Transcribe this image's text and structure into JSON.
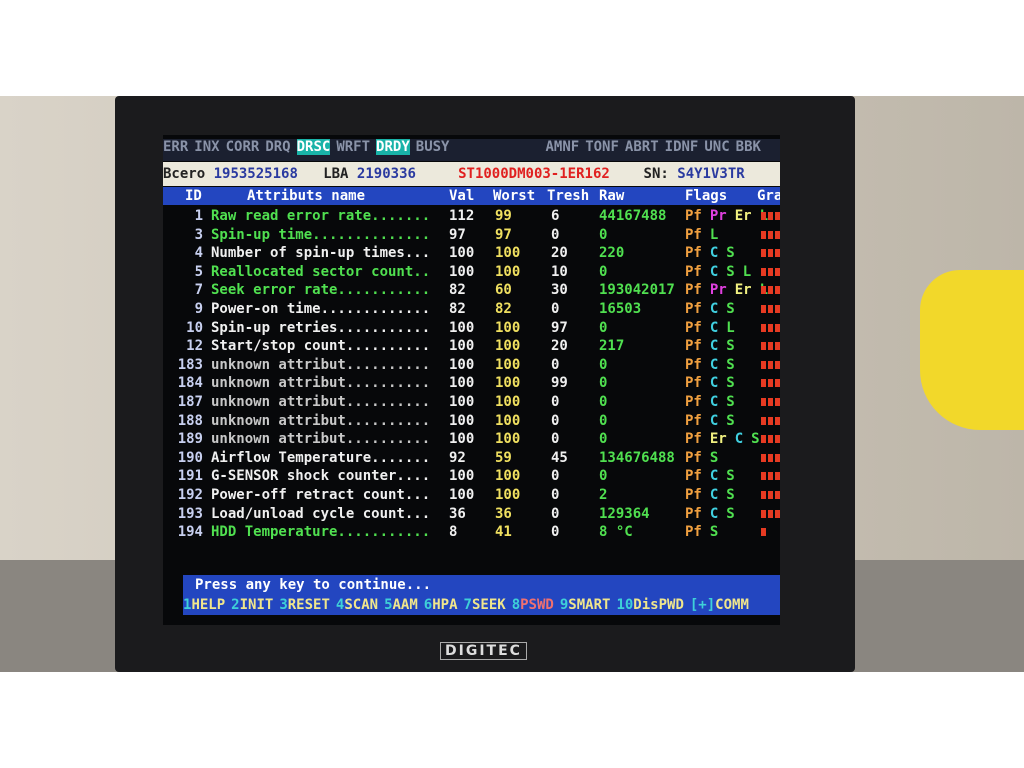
{
  "status_flags": [
    {
      "t": "ERR",
      "on": false
    },
    {
      "t": "INX",
      "on": false
    },
    {
      "t": "CORR",
      "on": false
    },
    {
      "t": "DRQ",
      "on": false
    },
    {
      "t": "DRSC",
      "on": true
    },
    {
      "t": "WRFT",
      "on": false
    },
    {
      "t": "DRDY",
      "on": true
    },
    {
      "t": "BUSY",
      "on": false
    }
  ],
  "error_flags": [
    "AMNF",
    "TONF",
    "ABRT",
    "IDNF",
    "UNC",
    "BBK"
  ],
  "info": {
    "size_label": "Bcero",
    "size": "1953525168",
    "lba_label": "LBA",
    "lba": "2190336",
    "model": "ST1000DM003-1ER162",
    "sn_label": "SN:",
    "sn": "S4Y1V3TR"
  },
  "headers": {
    "id": "ID",
    "name": "Attributs name",
    "val": "Val",
    "worst": "Worst",
    "tresh": "Tresh",
    "raw": "Raw",
    "flags": "Flags",
    "graph": "Gra"
  },
  "flag_colors": {
    "Pf": "#f0a040",
    "Pr": "#e040e0",
    "Er": "#f0f080",
    "L": "#50e050",
    "C": "#40d0e0",
    "S": "#50e050"
  },
  "rows": [
    {
      "id": "1",
      "name": "Raw read error rate.......",
      "val": "112",
      "worst": "99",
      "tresh": "6",
      "raw": "44167488",
      "flags": [
        "Pf",
        "Pr",
        "Er",
        "L"
      ],
      "color": "#50e050",
      "bars": 4
    },
    {
      "id": "3",
      "name": "Spin-up time..............",
      "val": "97",
      "worst": "97",
      "tresh": "0",
      "raw": "0",
      "flags": [
        "Pf",
        "L"
      ],
      "color": "#50e050",
      "bars": 4
    },
    {
      "id": "4",
      "name": "Number of spin-up times...",
      "val": "100",
      "worst": "100",
      "tresh": "20",
      "raw": "220",
      "flags": [
        "Pf",
        "C",
        "S"
      ],
      "color": "#f0f0f0",
      "bars": 4
    },
    {
      "id": "5",
      "name": "Reallocated sector count..",
      "val": "100",
      "worst": "100",
      "tresh": "10",
      "raw": "0",
      "flags": [
        "Pf",
        "C",
        "S",
        "L"
      ],
      "color": "#50e050",
      "bars": 4
    },
    {
      "id": "7",
      "name": "Seek error rate...........",
      "val": "82",
      "worst": "60",
      "tresh": "30",
      "raw": "193042017",
      "flags": [
        "Pf",
        "Pr",
        "Er",
        "L"
      ],
      "color": "#50e050",
      "bars": 4
    },
    {
      "id": "9",
      "name": "Power-on time.............",
      "val": "82",
      "worst": "82",
      "tresh": "0",
      "raw": "16503",
      "flags": [
        "Pf",
        "C",
        "S"
      ],
      "color": "#f0f0f0",
      "bars": 4
    },
    {
      "id": "10",
      "name": "Spin-up retries...........",
      "val": "100",
      "worst": "100",
      "tresh": "97",
      "raw": "0",
      "flags": [
        "Pf",
        "C",
        "L"
      ],
      "color": "#f0f0f0",
      "bars": 4
    },
    {
      "id": "12",
      "name": "Start/stop count..........",
      "val": "100",
      "worst": "100",
      "tresh": "20",
      "raw": "217",
      "flags": [
        "Pf",
        "C",
        "S"
      ],
      "color": "#f0f0f0",
      "bars": 4
    },
    {
      "id": "183",
      "name": "unknown attribut..........",
      "val": "100",
      "worst": "100",
      "tresh": "0",
      "raw": "0",
      "flags": [
        "Pf",
        "C",
        "S"
      ],
      "color": "#c8c8c8",
      "bars": 4
    },
    {
      "id": "184",
      "name": "unknown attribut..........",
      "val": "100",
      "worst": "100",
      "tresh": "99",
      "raw": "0",
      "flags": [
        "Pf",
        "C",
        "S"
      ],
      "color": "#c8c8c8",
      "bars": 4
    },
    {
      "id": "187",
      "name": "unknown attribut..........",
      "val": "100",
      "worst": "100",
      "tresh": "0",
      "raw": "0",
      "flags": [
        "Pf",
        "C",
        "S"
      ],
      "color": "#c8c8c8",
      "bars": 4
    },
    {
      "id": "188",
      "name": "unknown attribut..........",
      "val": "100",
      "worst": "100",
      "tresh": "0",
      "raw": "0",
      "flags": [
        "Pf",
        "C",
        "S"
      ],
      "color": "#c8c8c8",
      "bars": 4
    },
    {
      "id": "189",
      "name": "unknown attribut..........",
      "val": "100",
      "worst": "100",
      "tresh": "0",
      "raw": "0",
      "flags": [
        "Pf",
        "Er",
        "C",
        "S"
      ],
      "color": "#c8c8c8",
      "bars": 4
    },
    {
      "id": "190",
      "name": "Airflow Temperature.......",
      "val": "92",
      "worst": "59",
      "tresh": "45",
      "raw": "134676488",
      "flags": [
        "Pf",
        "S"
      ],
      "color": "#f0f0f0",
      "bars": 4
    },
    {
      "id": "191",
      "name": "G-SENSOR shock counter....",
      "val": "100",
      "worst": "100",
      "tresh": "0",
      "raw": "0",
      "flags": [
        "Pf",
        "C",
        "S"
      ],
      "color": "#f0f0f0",
      "bars": 4
    },
    {
      "id": "192",
      "name": "Power-off retract count...",
      "val": "100",
      "worst": "100",
      "tresh": "0",
      "raw": "2",
      "flags": [
        "Pf",
        "C",
        "S"
      ],
      "color": "#f0f0f0",
      "bars": 4
    },
    {
      "id": "193",
      "name": "Load/unload cycle count...",
      "val": "36",
      "worst": "36",
      "tresh": "0",
      "raw": "129364",
      "flags": [
        "Pf",
        "C",
        "S"
      ],
      "color": "#f0f0f0",
      "bars": 4
    },
    {
      "id": "194",
      "name": "HDD Temperature...........",
      "val": "8",
      "worst": "41",
      "tresh": "0",
      "raw": "8 °C",
      "flags": [
        "Pf",
        "S"
      ],
      "color": "#50e050",
      "bars": 1
    }
  ],
  "prompt": "Press any key to continue...",
  "fkeys": [
    {
      "n": "1",
      "l": "HELP"
    },
    {
      "n": "2",
      "l": "INIT"
    },
    {
      "n": "3",
      "l": "RESET"
    },
    {
      "n": "4",
      "l": "SCAN"
    },
    {
      "n": "5",
      "l": "AAM"
    },
    {
      "n": "6",
      "l": "HPA"
    },
    {
      "n": "7",
      "l": "SEEK"
    },
    {
      "n": "8",
      "l": "PSWD"
    },
    {
      "n": "9",
      "l": "SMART"
    },
    {
      "n": "10",
      "l": "DisPWD"
    },
    {
      "n": "[+]",
      "l": "COMM"
    }
  ],
  "brand": "DIGITEC"
}
